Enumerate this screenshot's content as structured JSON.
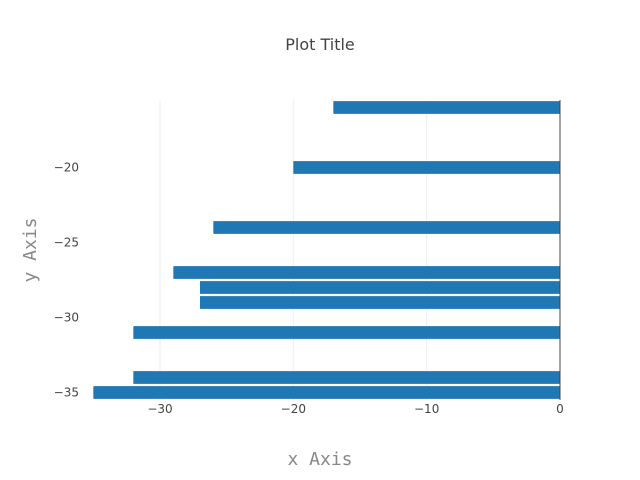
{
  "chart_data": {
    "type": "bar",
    "orientation": "horizontal",
    "title": "Plot Title",
    "xlabel": "x Axis",
    "ylabel": "y Axis",
    "xlim": [
      -36,
      0
    ],
    "ylim": [
      -35.5,
      -15.5
    ],
    "xticks": [
      -30,
      -20,
      -10,
      0
    ],
    "xtick_labels": [
      "−30",
      "−20",
      "−10",
      "0"
    ],
    "yticks": [
      -20,
      -25,
      -30,
      -35
    ],
    "ytick_labels": [
      "−20",
      "−25",
      "−30",
      "−35"
    ],
    "grid": true,
    "legend": false,
    "bar_color": "#1f77b4",
    "bar_height": 0.85,
    "bars": [
      {
        "y": -16,
        "x": -17
      },
      {
        "y": -20,
        "x": -20
      },
      {
        "y": -24,
        "x": -26
      },
      {
        "y": -27,
        "x": -29
      },
      {
        "y": -28,
        "x": -27
      },
      {
        "y": -29,
        "x": -27
      },
      {
        "y": -31,
        "x": -32
      },
      {
        "y": -34,
        "x": -32
      },
      {
        "y": -35,
        "x": -35
      }
    ]
  }
}
